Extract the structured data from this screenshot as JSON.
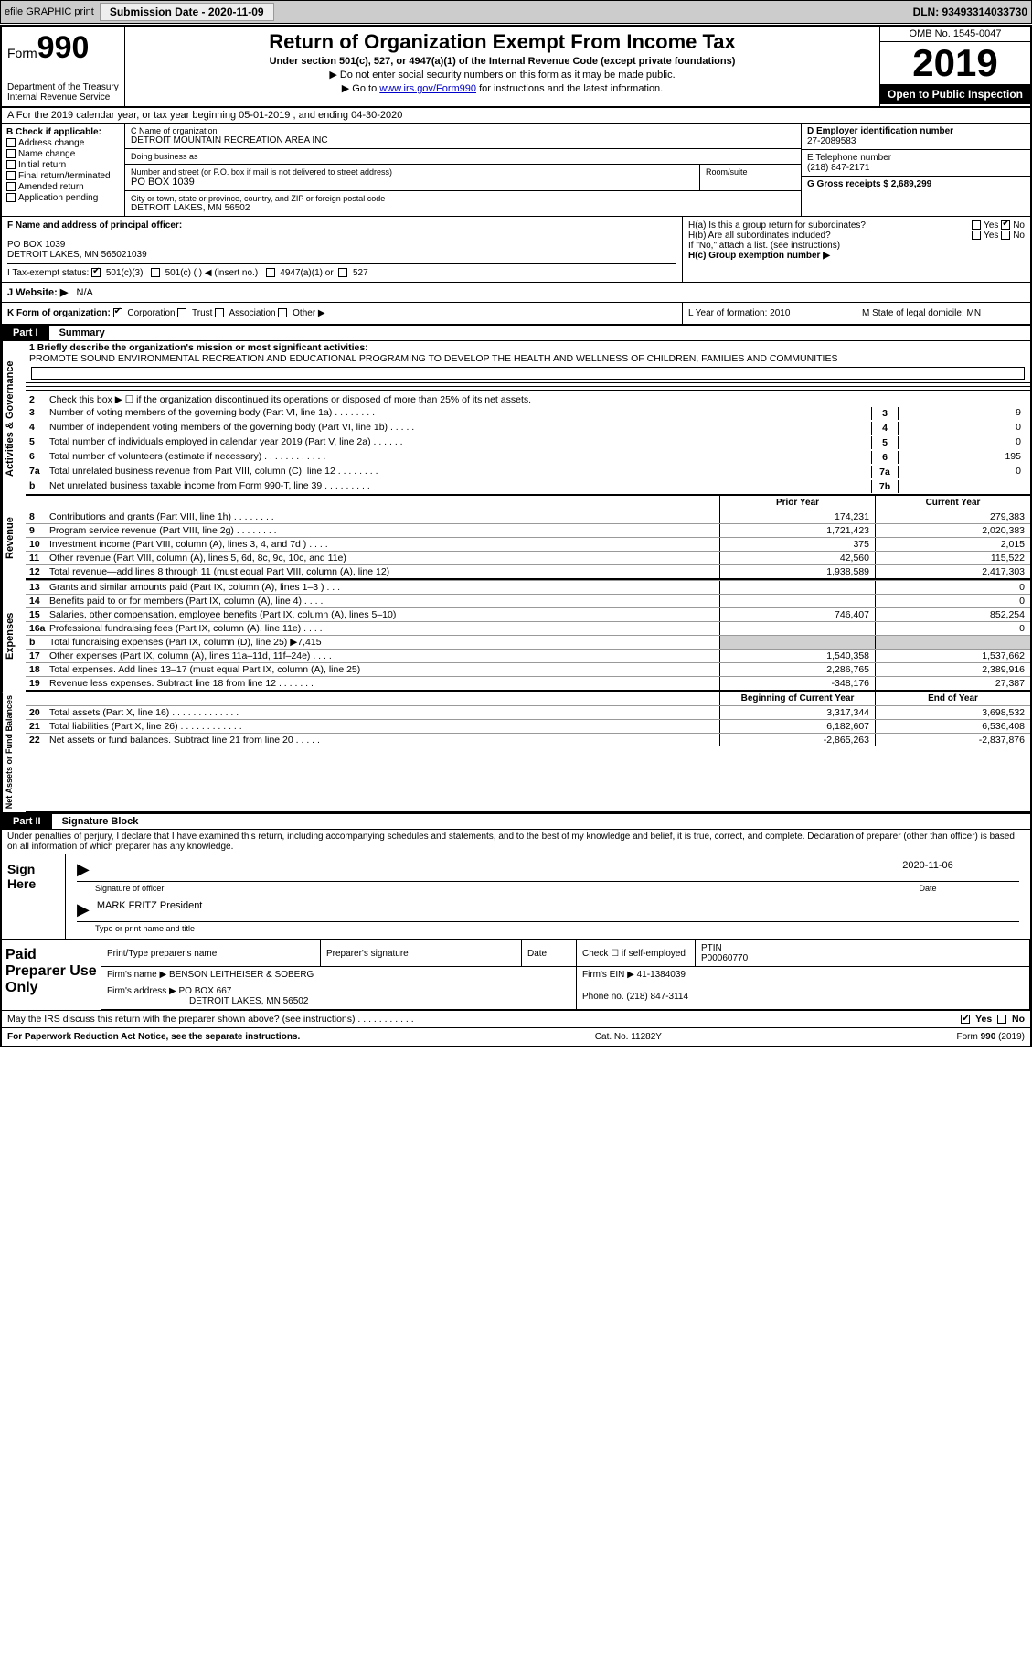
{
  "toolbar": {
    "efile": "efile GRAPHIC print",
    "subdate_lbl": "Submission Date - 2020-11-09",
    "dln": "DLN: 93493314033730"
  },
  "header": {
    "form_word": "Form",
    "form_num": "990",
    "dept": "Department of the Treasury Internal Revenue Service",
    "title": "Return of Organization Exempt From Income Tax",
    "sub": "Under section 501(c), 527, or 4947(a)(1) of the Internal Revenue Code (except private foundations)",
    "note1": "▶ Do not enter social security numbers on this form as it may be made public.",
    "note2_pre": "▶ Go to ",
    "note2_link": "www.irs.gov/Form990",
    "note2_post": " for instructions and the latest information.",
    "omb": "OMB No. 1545-0047",
    "year": "2019",
    "insp": "Open to Public Inspection"
  },
  "row_a": "A For the 2019 calendar year, or tax year beginning 05-01-2019    , and ending 04-30-2020",
  "box_b": {
    "hdr": "B Check if applicable:",
    "items": [
      "Address change",
      "Name change",
      "Initial return",
      "Final return/terminated",
      "Amended return",
      "Application pending"
    ]
  },
  "box_c": {
    "lbl_name": "C Name of organization",
    "name": "DETROIT MOUNTAIN RECREATION AREA INC",
    "lbl_dba": "Doing business as",
    "dba": "",
    "lbl_addr": "Number and street (or P.O. box if mail is not delivered to street address)",
    "room_lbl": "Room/suite",
    "addr": "PO BOX 1039",
    "lbl_city": "City or town, state or province, country, and ZIP or foreign postal code",
    "city": "DETROIT LAKES, MN  56502"
  },
  "box_d": {
    "lbl": "D Employer identification number",
    "val": "27-2089583"
  },
  "box_e": {
    "lbl": "E Telephone number",
    "val": "(218) 847-2171"
  },
  "box_g": {
    "lbl": "G Gross receipts $ 2,689,299"
  },
  "box_f": {
    "lbl": "F  Name and address of principal officer:",
    "l1": "PO BOX 1039",
    "l2": "DETROIT LAKES, MN  565021039"
  },
  "box_h": {
    "ha": "H(a)  Is this a group return for subordinates?",
    "ha_yes": "Yes",
    "ha_no": "No",
    "hb": "H(b)  Are all subordinates included?",
    "hb_note": "If \"No,\" attach a list. (see instructions)",
    "hc": "H(c)  Group exemption number ▶"
  },
  "tax_exempt": {
    "lbl": "I   Tax-exempt status:",
    "o1": "501(c)(3)",
    "o2": "501(c) (  ) ◀ (insert no.)",
    "o3": "4947(a)(1) or",
    "o4": "527"
  },
  "website": {
    "lbl": "J   Website: ▶",
    "val": "N/A"
  },
  "row_k": {
    "lbl": "K Form of organization:",
    "o1": "Corporation",
    "o2": "Trust",
    "o3": "Association",
    "o4": "Other ▶"
  },
  "row_l": "L Year of formation: 2010",
  "row_m": "M State of legal domicile: MN",
  "part1": {
    "hdr": "Part I",
    "title": "Summary"
  },
  "act_gov": {
    "side": "Activities & Governance",
    "l1_lbl": "1  Briefly describe the organization's mission or most significant activities:",
    "l1_val": "PROMOTE SOUND ENVIRONMENTAL RECREATION AND EDUCATIONAL PROGRAMING TO DEVELOP THE HEALTH AND WELLNESS OF CHILDREN, FAMILIES AND COMMUNITIES",
    "l2": "Check this box ▶ ☐  if the organization discontinued its operations or disposed of more than 25% of its net assets.",
    "rows": [
      {
        "n": "3",
        "t": "Number of voting members of the governing body (Part VI, line 1a)   .    .    .    .    .    .    .    .",
        "b": "3",
        "v": "9"
      },
      {
        "n": "4",
        "t": "Number of independent voting members of the governing body (Part VI, line 1b)  .    .    .    .    .",
        "b": "4",
        "v": "0"
      },
      {
        "n": "5",
        "t": "Total number of individuals employed in calendar year 2019 (Part V, line 2a)  .    .    .    .    .    .",
        "b": "5",
        "v": "0"
      },
      {
        "n": "6",
        "t": "Total number of volunteers (estimate if necessary)    .    .    .    .    .    .    .    .    .    .    .    .",
        "b": "6",
        "v": "195"
      },
      {
        "n": "7a",
        "t": "Total unrelated business revenue from Part VIII, column (C), line 12   .    .    .    .    .    .    .    .",
        "b": "7a",
        "v": "0"
      },
      {
        "n": "b",
        "t": "Net unrelated business taxable income from Form 990-T, line 39   .    .    .    .    .    .    .    .    .",
        "b": "7b",
        "v": ""
      }
    ]
  },
  "rev": {
    "side": "Revenue",
    "hdr_prior": "Prior Year",
    "hdr_curr": "Current Year",
    "rows": [
      {
        "n": "8",
        "t": "Contributions and grants (Part VIII, line 1h)    .    .    .    .    .    .    .    .",
        "p": "174,231",
        "c": "279,383"
      },
      {
        "n": "9",
        "t": "Program service revenue (Part VIII, line 2g)    .    .    .    .    .    .    .    .",
        "p": "1,721,423",
        "c": "2,020,383"
      },
      {
        "n": "10",
        "t": "Investment income (Part VIII, column (A), lines 3, 4, and 7d )    .    .    .    .",
        "p": "375",
        "c": "2,015"
      },
      {
        "n": "11",
        "t": "Other revenue (Part VIII, column (A), lines 5, 6d, 8c, 9c, 10c, and 11e)",
        "p": "42,560",
        "c": "115,522"
      },
      {
        "n": "12",
        "t": "Total revenue—add lines 8 through 11 (must equal Part VIII, column (A), line 12)",
        "p": "1,938,589",
        "c": "2,417,303"
      }
    ]
  },
  "exp": {
    "side": "Expenses",
    "rows": [
      {
        "n": "13",
        "t": "Grants and similar amounts paid (Part IX, column (A), lines 1–3 )   .    .    .",
        "p": "",
        "c": "0"
      },
      {
        "n": "14",
        "t": "Benefits paid to or for members (Part IX, column (A), line 4)   .    .    .    .",
        "p": "",
        "c": "0"
      },
      {
        "n": "15",
        "t": "Salaries, other compensation, employee benefits (Part IX, column (A), lines 5–10)",
        "p": "746,407",
        "c": "852,254"
      },
      {
        "n": "16a",
        "t": "Professional fundraising fees (Part IX, column (A), line 11e)   .    .    .    .",
        "p": "",
        "c": "0"
      },
      {
        "n": "b",
        "t": "Total fundraising expenses (Part IX, column (D), line 25) ▶7,415",
        "p": "shaded",
        "c": "shaded"
      },
      {
        "n": "17",
        "t": "Other expenses (Part IX, column (A), lines 11a–11d, 11f–24e)    .    .    .    .",
        "p": "1,540,358",
        "c": "1,537,662"
      },
      {
        "n": "18",
        "t": "Total expenses. Add lines 13–17 (must equal Part IX, column (A), line 25)",
        "p": "2,286,765",
        "c": "2,389,916"
      },
      {
        "n": "19",
        "t": "Revenue less expenses. Subtract line 18 from line 12   .    .    .    .    .    .    .",
        "p": "-348,176",
        "c": "27,387"
      }
    ]
  },
  "net": {
    "side": "Net Assets or Fund Balances",
    "hdr_b": "Beginning of Current Year",
    "hdr_e": "End of Year",
    "rows": [
      {
        "n": "20",
        "t": "Total assets (Part X, line 16)   .    .    .    .    .    .    .    .    .    .    .    .    .",
        "p": "3,317,344",
        "c": "3,698,532"
      },
      {
        "n": "21",
        "t": "Total liabilities (Part X, line 26)   .    .    .    .    .    .    .    .    .    .    .    .",
        "p": "6,182,607",
        "c": "6,536,408"
      },
      {
        "n": "22",
        "t": "Net assets or fund balances. Subtract line 21 from line 20   .    .    .    .    .",
        "p": "-2,865,263",
        "c": "-2,837,876"
      }
    ]
  },
  "part2": {
    "hdr": "Part II",
    "title": "Signature Block",
    "decl": "Under penalties of perjury, I declare that I have examined this return, including accompanying schedules and statements, and to the best of my knowledge and belief, it is true, correct, and complete. Declaration of preparer (other than officer) is based on all information of which preparer has any knowledge."
  },
  "sign": {
    "lbl": "Sign Here",
    "arrow": "▶",
    "sig_of": "Signature of officer",
    "date_lbl": "Date",
    "date": "2020-11-06",
    "name": "MARK FRITZ  President",
    "name_lbl": "Type or print name and title"
  },
  "prep": {
    "lbl": "Paid Preparer Use Only",
    "h1": "Print/Type preparer's name",
    "h2": "Preparer's signature",
    "h3": "Date",
    "h4_pre": "Check ☐ if self-employed",
    "h5": "PTIN",
    "ptin": "P00060770",
    "firm_lbl": "Firm's name      ▶",
    "firm": "BENSON LEITHEISER & SOBERG",
    "ein_lbl": "Firm's EIN ▶",
    "ein": "41-1384039",
    "addr_lbl": "Firm's address ▶",
    "addr": "PO BOX 667",
    "addr2": "DETROIT LAKES, MN  56502",
    "phone_lbl": "Phone no.",
    "phone": "(218) 847-3114"
  },
  "discuss": "May the IRS discuss this return with the preparer shown above? (see instructions)    .    .    .    .    .    .    .    .    .    .    .",
  "discuss_yes": "Yes",
  "discuss_no": "No",
  "footer": {
    "l": "For Paperwork Reduction Act Notice, see the separate instructions.",
    "c": "Cat. No. 11282Y",
    "r": "Form 990 (2019)"
  }
}
